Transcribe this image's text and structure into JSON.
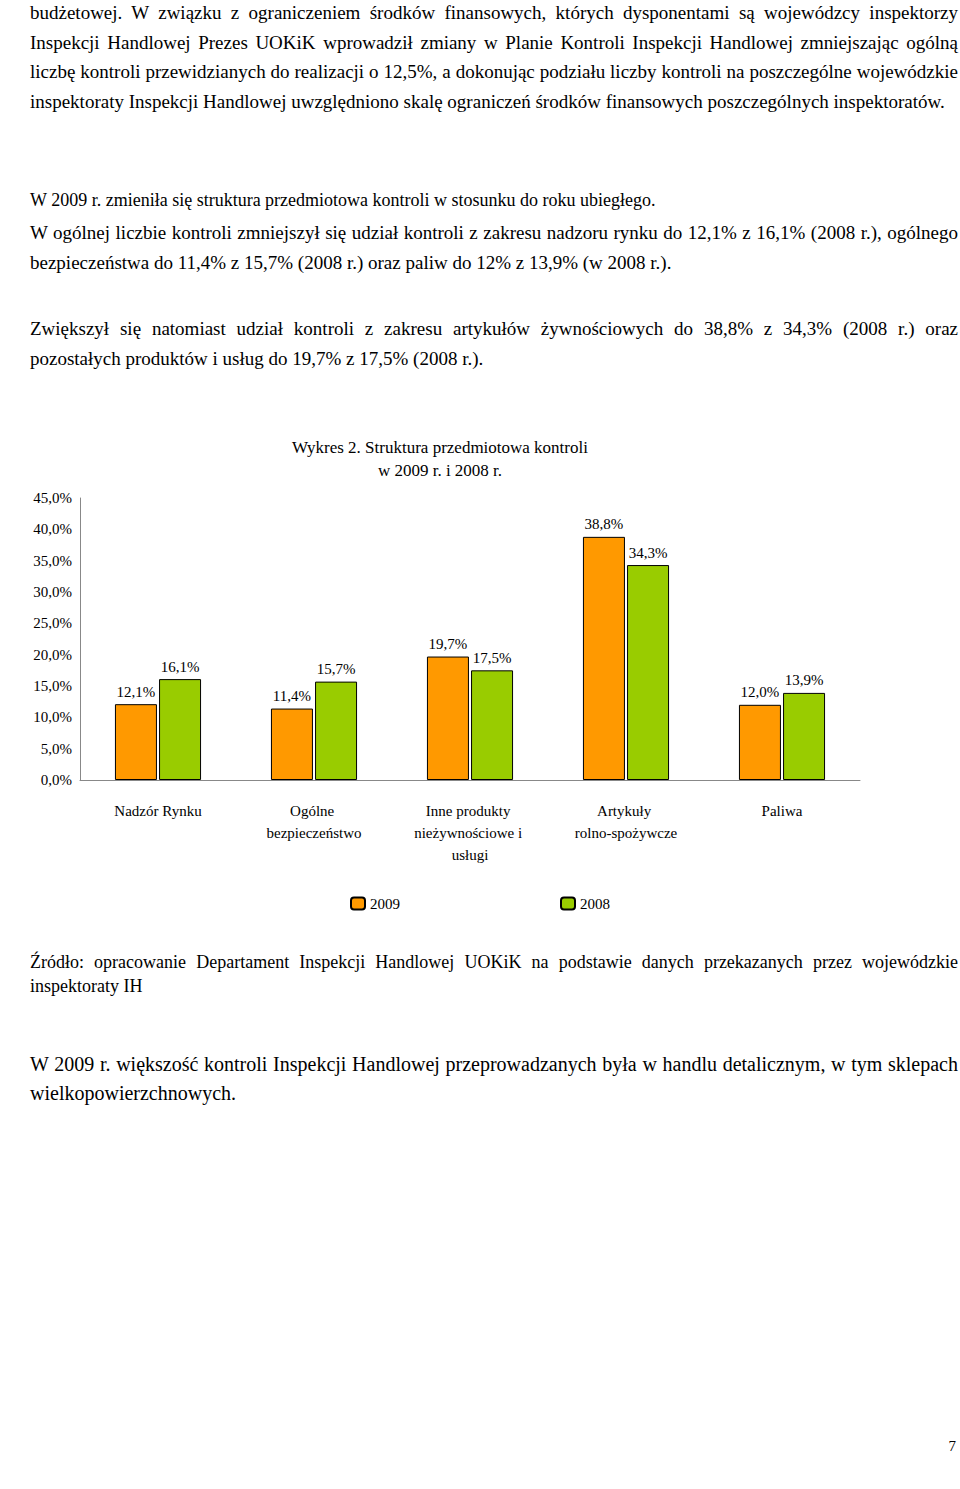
{
  "paragraphs_top": [
    "budżetowej. W związku z ograniczeniem środków finansowych, których dysponentami są wojewódzcy inspektorzy Inspekcji Handlowej Prezes UOKiK wprowadził zmiany w Planie Kontroli Inspekcji Handlowej zmniejszając ogólną liczbę kontroli przewidzianych do realizacji o 12,5%, a dokonując podziału liczby kontroli na poszczególne wojewódzkie inspektoraty Inspekcji Handlowej uwzględniono skalę ograniczeń środków finansowych poszczególnych inspektoratów.",
    "W 2009 r. zmieniła się struktura przedmiotowa kontroli w stosunku do roku ubiegłego.",
    "W ogólnej liczbie kontroli zmniejszył się udział kontroli z zakresu nadzoru rynku do 12,1% z 16,1% (2008 r.), ogólnego bezpieczeństwa do 11,4% z 15,7% (2008 r.) oraz paliw do 12% z 13,9% (w 2008 r.).",
    "Zwiększył się natomiast udział kontroli z zakresu artykułów żywnościowych do 38,8% z 34,3% (2008 r.) oraz pozostałych produktów i usług do 19,7% z 17,5% (2008 r.)."
  ],
  "chart_title": [
    "Wykres 2. Struktura przedmiotowa kontroli",
    "w 2009 r. i 2008 r."
  ],
  "chart_data": {
    "type": "bar",
    "categories": [
      "Nadzór Rynku",
      "Ogólne bezpieczeństwo",
      "Inne produkty nieżywnościowe i usługi",
      "Artykuły rolno-spożywcze",
      "Paliwa"
    ],
    "series": [
      {
        "name": "2009",
        "color": "#ff9900",
        "values": [
          12.1,
          11.4,
          19.7,
          38.8,
          12.0
        ],
        "value_labels": [
          "12,1%",
          "11,4%",
          "19,7%",
          "38,8%",
          "12,0%"
        ]
      },
      {
        "name": "2008",
        "color": "#99cc00",
        "values": [
          16.1,
          15.7,
          17.5,
          34.3,
          13.9
        ],
        "value_labels": [
          "16,1%",
          "15,7%",
          "17,5%",
          "34,3%",
          "13,9%"
        ]
      }
    ],
    "ylim": [
      0,
      45
    ],
    "yticks": [
      {
        "value": 0,
        "label": "0,0%"
      },
      {
        "value": 5,
        "label": "5,0%"
      },
      {
        "value": 10,
        "label": "10,0%"
      },
      {
        "value": 15,
        "label": "15,0%"
      },
      {
        "value": 20,
        "label": "20,0%"
      },
      {
        "value": 25,
        "label": "25,0%"
      },
      {
        "value": 30,
        "label": "30,0%"
      },
      {
        "value": 35,
        "label": "35,0%"
      },
      {
        "value": 40,
        "label": "40,0%"
      },
      {
        "value": 45,
        "label": "45,0%"
      }
    ],
    "grid": false,
    "data_labels": true,
    "legend": "bottom"
  },
  "source": "Źródło: opracowanie Departament Inspekcji Handlowej UOKiK na podstawie danych przekazanych przez wojewódzkie inspektoraty IH",
  "paragraph_bottom": "W 2009 r. większość kontroli Inspekcji Handlowej przeprowadzanych była w handlu detalicznym, w tym sklepach wielkopowierzchnowych.",
  "page_number": "7"
}
